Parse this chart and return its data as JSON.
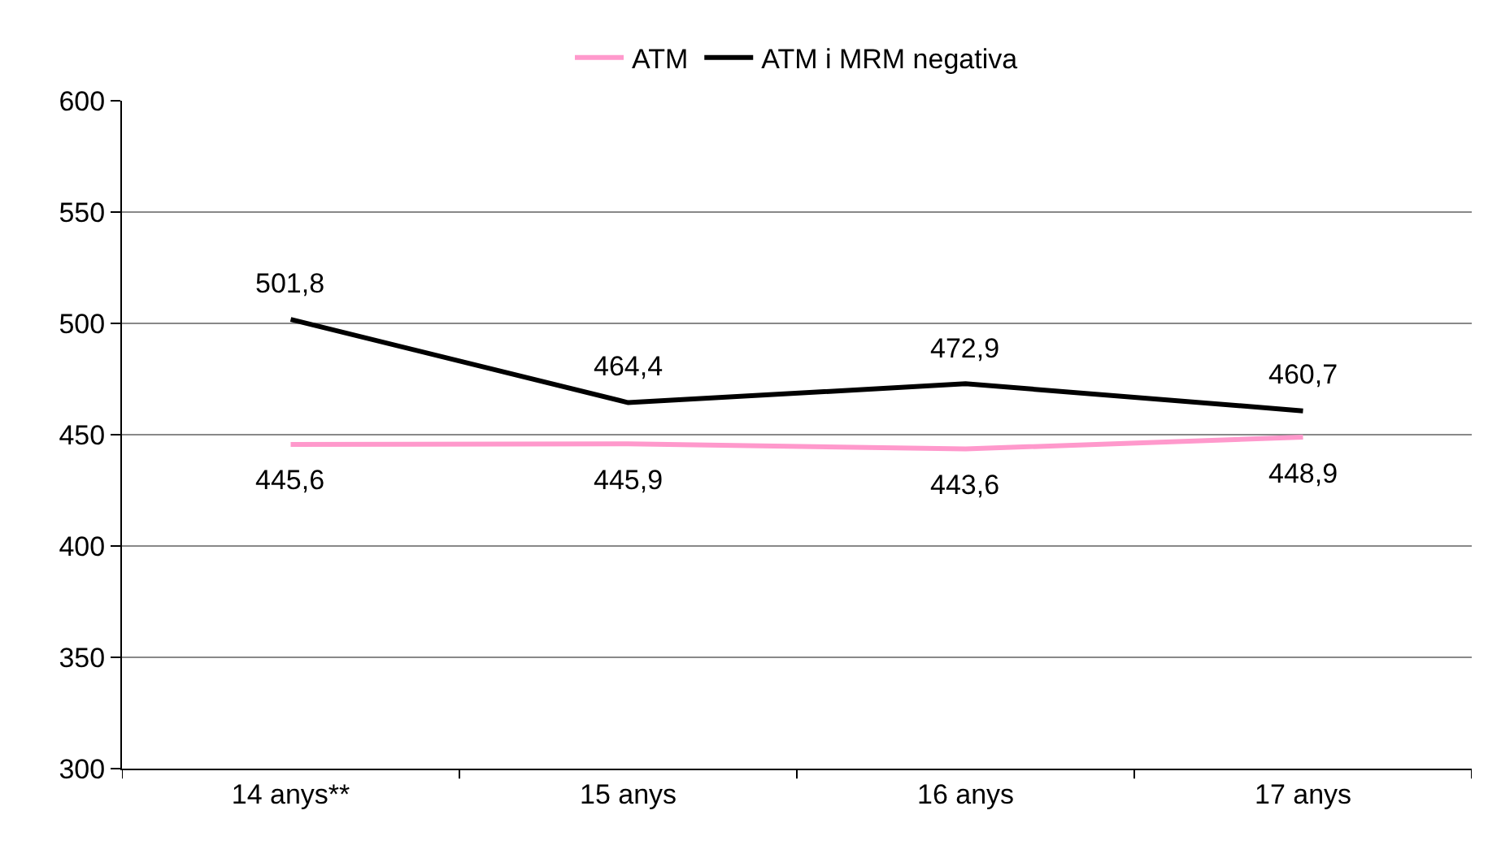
{
  "chart_data": {
    "type": "line",
    "categories": [
      "14 anys**",
      "15 anys",
      "16 anys",
      "17 anys"
    ],
    "series": [
      {
        "name": "ATM",
        "color": "#ff99cc",
        "values": [
          445.6,
          445.9,
          443.6,
          448.9
        ],
        "value_labels": [
          "445,6",
          "445,9",
          "443,6",
          "448,9"
        ]
      },
      {
        "name": "ATM i MRM negativa",
        "color": "#000000",
        "values": [
          501.8,
          464.4,
          472.9,
          460.7
        ],
        "value_labels": [
          "501,8",
          "464,4",
          "472,9",
          "460,7"
        ]
      }
    ],
    "ylim": [
      300,
      600
    ],
    "yticks": [
      300,
      350,
      400,
      450,
      500,
      550,
      600
    ],
    "grid": "y",
    "legend": "top",
    "marker": "none",
    "line_style": "solid"
  }
}
